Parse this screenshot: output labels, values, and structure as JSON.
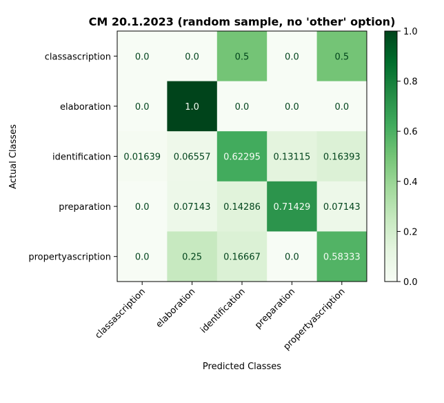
{
  "chart_data": {
    "type": "heatmap",
    "title": "CM 20.1.2023 (random sample, no 'other' option)",
    "xlabel": "Predicted Classes",
    "ylabel": "Actual Classes",
    "x_categories": [
      "classascription",
      "elaboration",
      "identification",
      "preparation",
      "propertyascription"
    ],
    "y_categories": [
      "classascription",
      "elaboration",
      "identification",
      "preparation",
      "propertyascription"
    ],
    "values": [
      [
        0.0,
        0.0,
        0.5,
        0.0,
        0.5
      ],
      [
        0.0,
        1.0,
        0.0,
        0.0,
        0.0
      ],
      [
        0.01639,
        0.06557,
        0.62295,
        0.13115,
        0.16393
      ],
      [
        0.0,
        0.07143,
        0.14286,
        0.71429,
        0.07143
      ],
      [
        0.0,
        0.25,
        0.16667,
        0.0,
        0.58333
      ]
    ],
    "value_labels": [
      [
        "0.0",
        "0.0",
        "0.5",
        "0.0",
        "0.5"
      ],
      [
        "0.0",
        "1.0",
        "0.0",
        "0.0",
        "0.0"
      ],
      [
        "0.01639",
        "0.06557",
        "0.62295",
        "0.13115",
        "0.16393"
      ],
      [
        "0.0",
        "0.07143",
        "0.14286",
        "0.71429",
        "0.07143"
      ],
      [
        "0.0",
        "0.25",
        "0.16667",
        "0.0",
        "0.58333"
      ]
    ],
    "colormap": "Greens",
    "colormap_stops": [
      "#f7fcf5",
      "#e5f5e0",
      "#c7e9c0",
      "#a1d99b",
      "#74c476",
      "#41ab5d",
      "#238b45",
      "#006d2c",
      "#00441b"
    ],
    "colorbar": {
      "range": [
        0.0,
        1.0
      ],
      "ticks": [
        0.0,
        0.2,
        0.4,
        0.6,
        0.8,
        1.0
      ],
      "tick_labels": [
        "0.0",
        "0.2",
        "0.4",
        "0.6",
        "0.8",
        "1.0"
      ]
    },
    "cell_text_color_dark": "#00441b",
    "cell_text_color_light": "#f7fcf5"
  }
}
